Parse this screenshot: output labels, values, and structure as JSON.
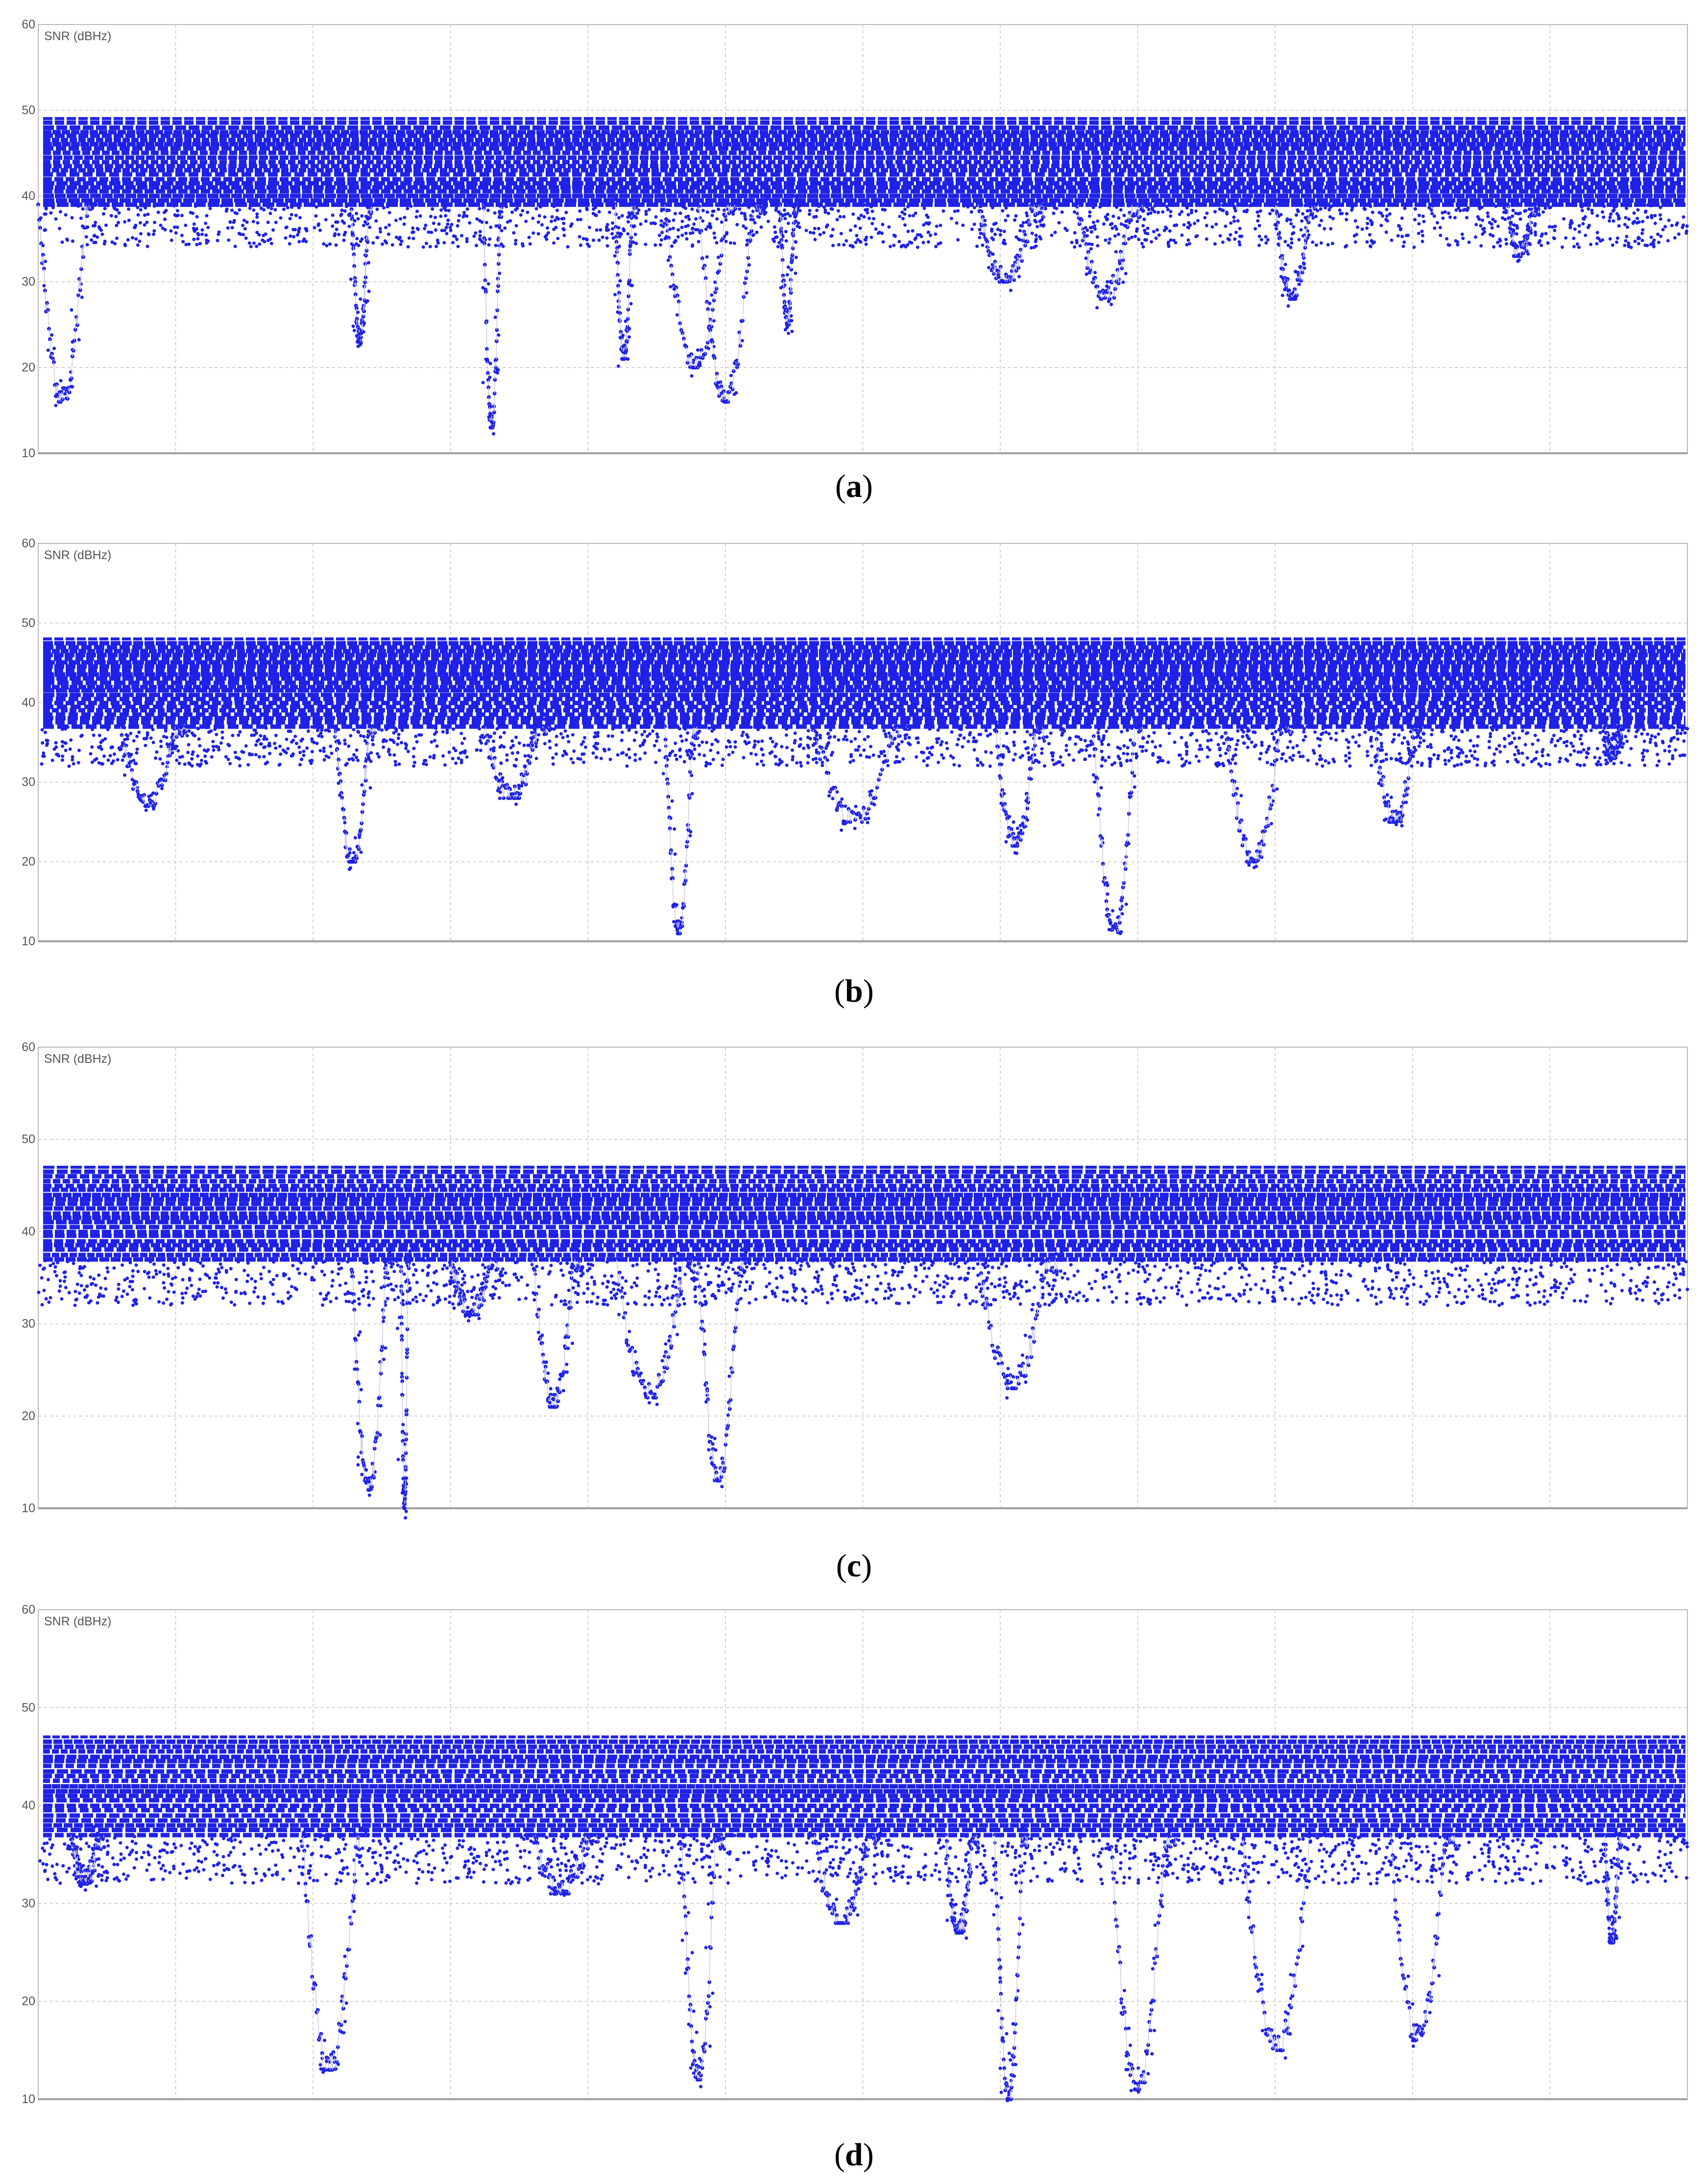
{
  "colors": {
    "series": "#1f22e6",
    "grid": "#cfcfcf",
    "axis": "#b8b8b8",
    "connector": "#c9cae8"
  },
  "chart_data": [
    {
      "type": "scatter",
      "ylabel": "SNR (dBHz)",
      "ylim": [
        10,
        60
      ],
      "yticks": [
        "60",
        "50",
        "40",
        "30",
        "20",
        "10"
      ],
      "caption": {
        "open": "(",
        "letter": "a",
        "close": ")"
      },
      "band": {
        "top": 49,
        "bottom": 39
      },
      "dips": [
        {
          "x": 0.0,
          "w": 0.035,
          "min": 16
        },
        {
          "x": 0.19,
          "w": 0.012,
          "min": 23
        },
        {
          "x": 0.27,
          "w": 0.012,
          "min": 13
        },
        {
          "x": 0.35,
          "w": 0.012,
          "min": 21
        },
        {
          "x": 0.38,
          "w": 0.045,
          "min": 20
        },
        {
          "x": 0.4,
          "w": 0.04,
          "min": 16
        },
        {
          "x": 0.45,
          "w": 0.01,
          "min": 25
        },
        {
          "x": 0.57,
          "w": 0.04,
          "min": 30
        },
        {
          "x": 0.63,
          "w": 0.04,
          "min": 28
        },
        {
          "x": 0.75,
          "w": 0.025,
          "min": 28
        },
        {
          "x": 0.89,
          "w": 0.02,
          "min": 33
        }
      ]
    },
    {
      "type": "scatter",
      "ylabel": "SNR (dBHz)",
      "ylim": [
        10,
        60
      ],
      "yticks": [
        "60",
        "50",
        "40",
        "30",
        "20",
        "10"
      ],
      "caption": {
        "open": "(",
        "letter": "b",
        "close": ")"
      },
      "band": {
        "top": 48,
        "bottom": 37
      },
      "dips": [
        {
          "x": 0.05,
          "w": 0.04,
          "min": 27
        },
        {
          "x": 0.18,
          "w": 0.025,
          "min": 20
        },
        {
          "x": 0.27,
          "w": 0.04,
          "min": 28
        },
        {
          "x": 0.38,
          "w": 0.02,
          "min": 11
        },
        {
          "x": 0.47,
          "w": 0.06,
          "min": 25
        },
        {
          "x": 0.58,
          "w": 0.03,
          "min": 22
        },
        {
          "x": 0.64,
          "w": 0.03,
          "min": 11
        },
        {
          "x": 0.72,
          "w": 0.04,
          "min": 20
        },
        {
          "x": 0.81,
          "w": 0.03,
          "min": 25
        },
        {
          "x": 0.95,
          "w": 0.01,
          "min": 33
        }
      ]
    },
    {
      "type": "scatter",
      "ylabel": "SNR (dBHz)",
      "ylim": [
        10,
        60
      ],
      "yticks": [
        "60",
        "50",
        "40",
        "30",
        "20",
        "10"
      ],
      "caption": {
        "open": "(",
        "letter": "c",
        "close": ")"
      },
      "band": {
        "top": 47,
        "bottom": 37
      },
      "dips": [
        {
          "x": 0.19,
          "w": 0.025,
          "min": 12
        },
        {
          "x": 0.22,
          "w": 0.005,
          "min": 10
        },
        {
          "x": 0.25,
          "w": 0.03,
          "min": 31
        },
        {
          "x": 0.3,
          "w": 0.03,
          "min": 21
        },
        {
          "x": 0.35,
          "w": 0.05,
          "min": 22
        },
        {
          "x": 0.4,
          "w": 0.03,
          "min": 13
        },
        {
          "x": 0.57,
          "w": 0.05,
          "min": 23
        }
      ]
    },
    {
      "type": "scatter",
      "ylabel": "SNR (dBHz)",
      "ylim": [
        10,
        60
      ],
      "yticks": [
        "60",
        "50",
        "40",
        "30",
        "20",
        "10"
      ],
      "caption": {
        "open": "(",
        "letter": "d",
        "close": ")"
      },
      "band": {
        "top": 47,
        "bottom": 37
      },
      "dips": [
        {
          "x": 0.02,
          "w": 0.02,
          "min": 32
        },
        {
          "x": 0.16,
          "w": 0.04,
          "min": 13
        },
        {
          "x": 0.3,
          "w": 0.04,
          "min": 31
        },
        {
          "x": 0.39,
          "w": 0.025,
          "min": 12
        },
        {
          "x": 0.47,
          "w": 0.04,
          "min": 28
        },
        {
          "x": 0.55,
          "w": 0.02,
          "min": 27
        },
        {
          "x": 0.58,
          "w": 0.02,
          "min": 10
        },
        {
          "x": 0.65,
          "w": 0.04,
          "min": 11
        },
        {
          "x": 0.73,
          "w": 0.05,
          "min": 15
        },
        {
          "x": 0.82,
          "w": 0.04,
          "min": 16
        },
        {
          "x": 0.95,
          "w": 0.01,
          "min": 26
        }
      ]
    }
  ]
}
